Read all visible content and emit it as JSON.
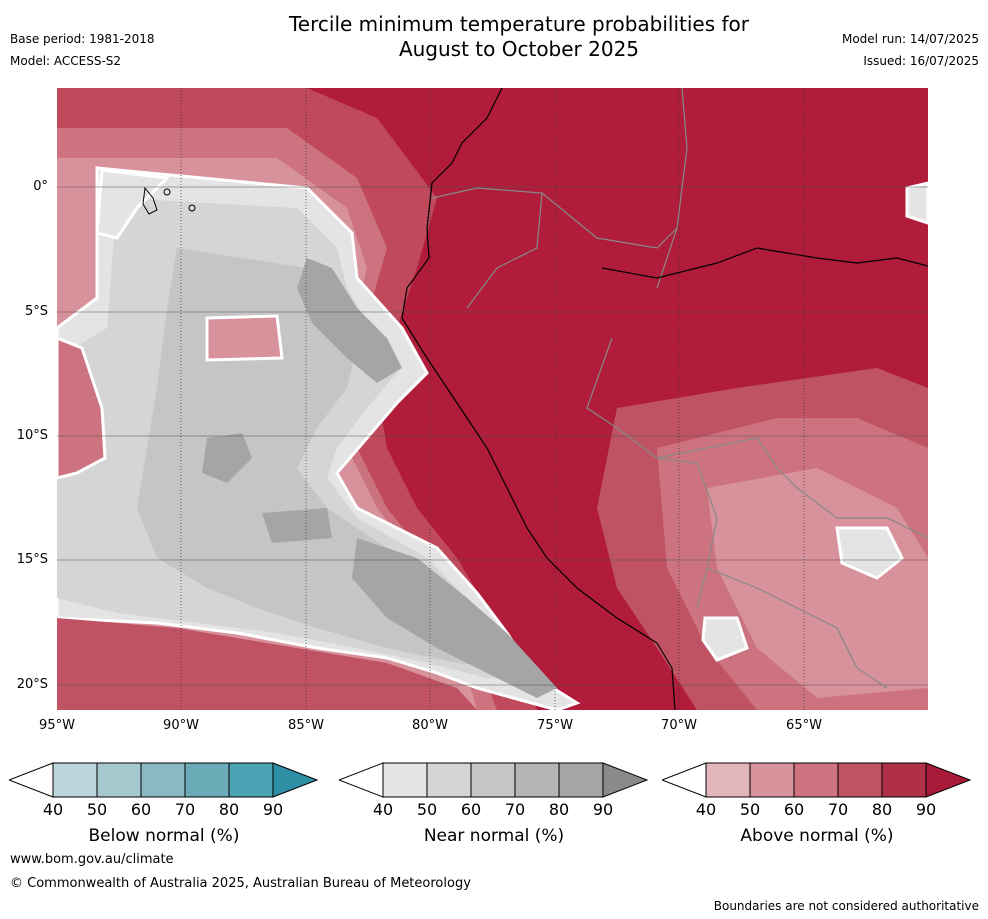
{
  "title_line1": "Tercile minimum temperature probabilities for",
  "title_line2": "August to October 2025",
  "base_period": "Base period: 1981-2018",
  "model": "Model: ACCESS-S2",
  "model_run": "Model run: 14/07/2025",
  "issued": "Issued: 16/07/2025",
  "lat_labels": [
    "0°",
    "5°S",
    "10°S",
    "15°S",
    "20°S"
  ],
  "lon_labels": [
    "95°W",
    "90°W",
    "85°W",
    "80°W",
    "75°W",
    "70°W",
    "65°W"
  ],
  "colorbars": [
    {
      "label": "Below normal (%)",
      "ticks": [
        "40",
        "50",
        "60",
        "70",
        "80",
        "90"
      ],
      "colors": [
        "#bcd4da",
        "#a6c8cf",
        "#8ab8c3",
        "#6cacb9",
        "#4aa2b2",
        "#2e8ea3"
      ]
    },
    {
      "label": "Near normal (%)",
      "ticks": [
        "40",
        "50",
        "60",
        "70",
        "80",
        "90"
      ],
      "colors": [
        "#e4e4e4",
        "#d5d5d5",
        "#c5c5c5",
        "#b5b5b5",
        "#a5a5a5",
        "#8a8a8a"
      ]
    },
    {
      "label": "Above normal (%)",
      "ticks": [
        "40",
        "50",
        "60",
        "70",
        "80",
        "90"
      ],
      "colors": [
        "#e3b5bc",
        "#d8929c",
        "#cc737f",
        "#c05363",
        "#b03047",
        "#a91a38"
      ]
    }
  ],
  "website": "www.bom.gov.au/climate",
  "copyright": "© Commonwealth of Australia 2025, Australian Bureau of Meteorology",
  "disclaimer": "Boundaries are not considered authoritative"
}
